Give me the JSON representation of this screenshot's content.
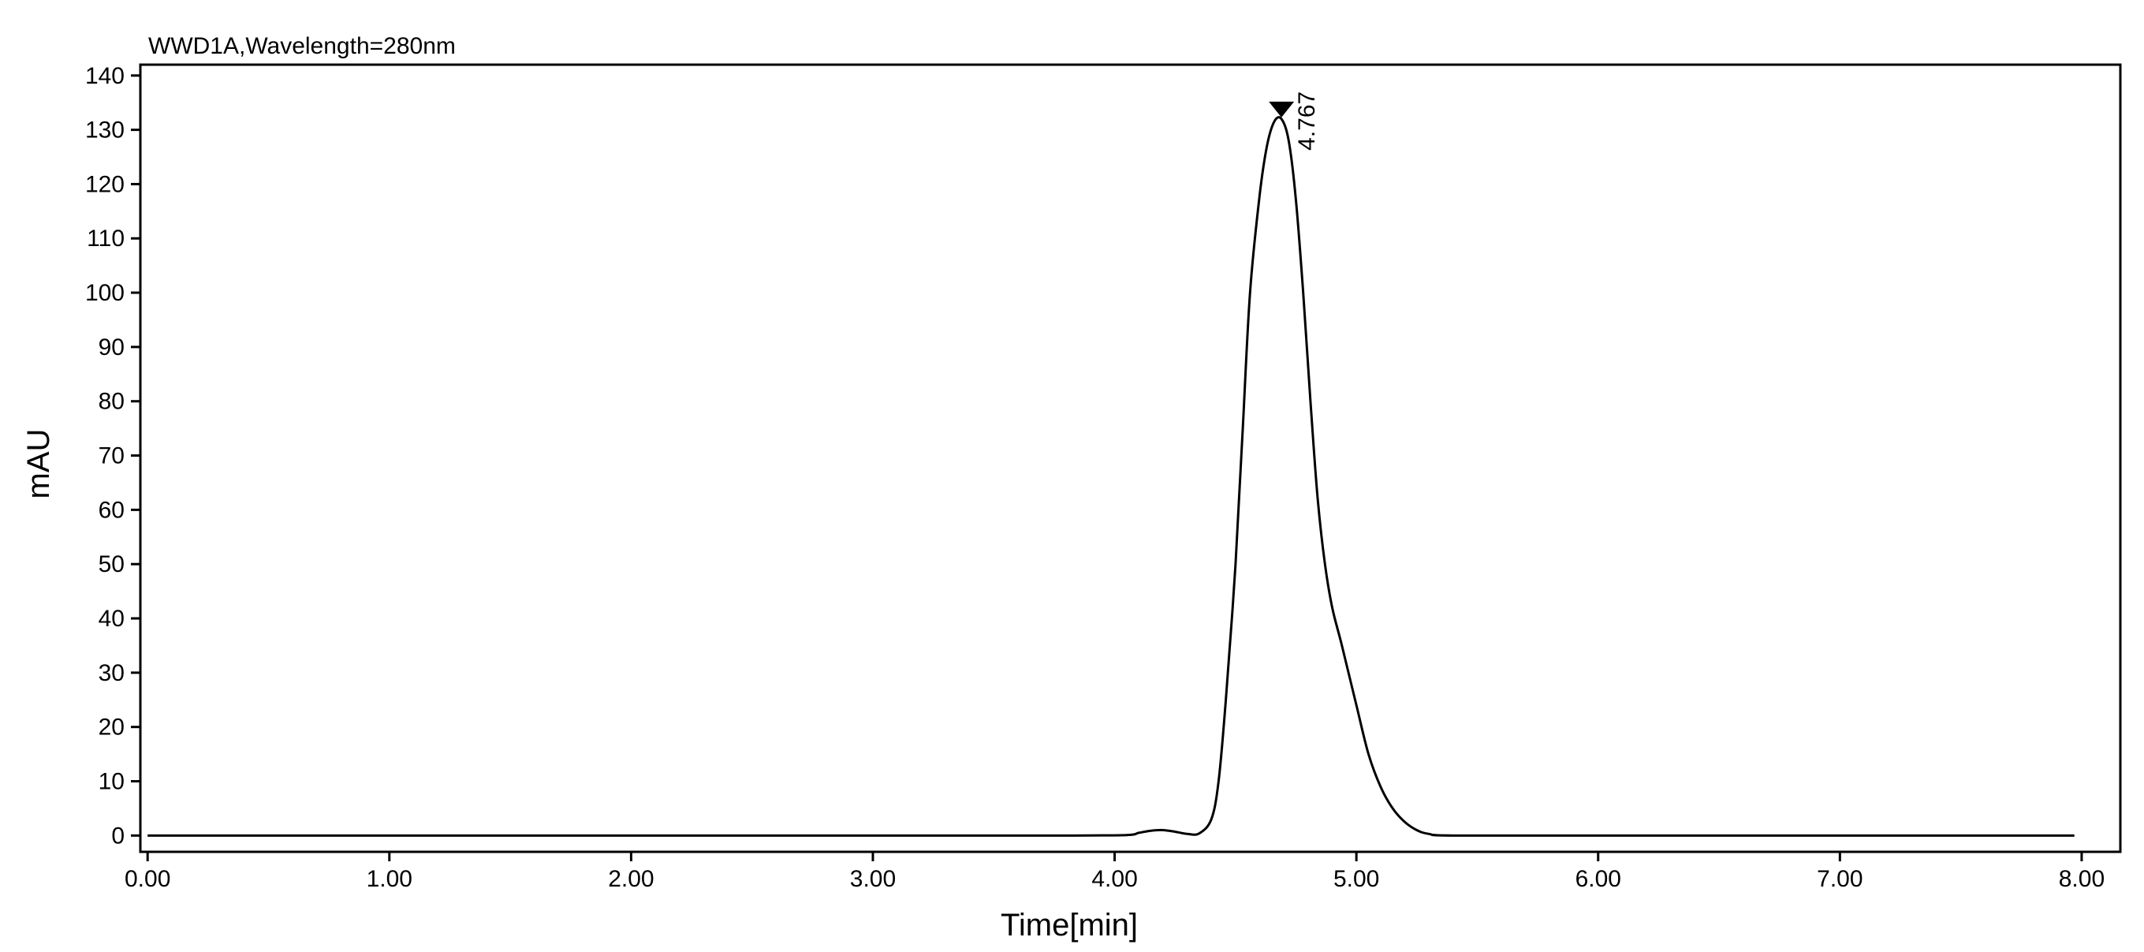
{
  "chart_data": {
    "type": "line",
    "title": "WWD1A,Wavelength=280nm",
    "xlabel": "Time[min]",
    "ylabel": "mAU",
    "xlim": [
      -0.03,
      8.16
    ],
    "ylim": [
      -3,
      142
    ],
    "x_ticks": [
      0,
      1,
      2,
      3,
      4,
      5,
      6,
      7,
      8
    ],
    "x_tick_labels": [
      "0.00",
      "1.00",
      "2.00",
      "3.00",
      "4.00",
      "5.00",
      "6.00",
      "7.00",
      "8.00"
    ],
    "y_ticks": [
      0,
      10,
      20,
      30,
      40,
      50,
      60,
      70,
      80,
      90,
      100,
      110,
      120,
      130,
      140
    ],
    "y_tick_labels": [
      "0",
      "10",
      "20",
      "30",
      "40",
      "50",
      "60",
      "70",
      "80",
      "90",
      "100",
      "110",
      "120",
      "130",
      "140"
    ],
    "grid": false,
    "series": [
      {
        "x": [
          0,
          0.5,
          1.0,
          2.0,
          3.0,
          3.8,
          4.05,
          4.1,
          4.15,
          4.2,
          4.25,
          4.3,
          4.35,
          4.4,
          4.43,
          4.46,
          4.5,
          4.53,
          4.56,
          4.6,
          4.63,
          4.66,
          4.69,
          4.72,
          4.75,
          4.78,
          4.81,
          4.84,
          4.87,
          4.9,
          4.94,
          5.0,
          5.05,
          5.1,
          5.15,
          5.2,
          5.25,
          5.3,
          5.4,
          6.0,
          7.0,
          7.5,
          7.97
        ],
        "y": [
          0,
          0,
          0,
          0,
          0,
          0,
          0.1,
          0.5,
          0.9,
          1.0,
          0.7,
          0.3,
          0.4,
          3,
          10,
          25,
          50,
          75,
          100,
          118,
          127,
          131.5,
          132,
          128,
          117,
          100,
          80,
          62,
          50,
          42,
          35,
          24,
          15,
          9,
          5,
          2.5,
          1,
          0.3,
          0,
          0,
          0,
          0,
          0
        ]
      }
    ],
    "annotations": [
      {
        "x": 4.69,
        "y": 132,
        "label": "4.767",
        "marker": "triangle-down"
      }
    ]
  }
}
